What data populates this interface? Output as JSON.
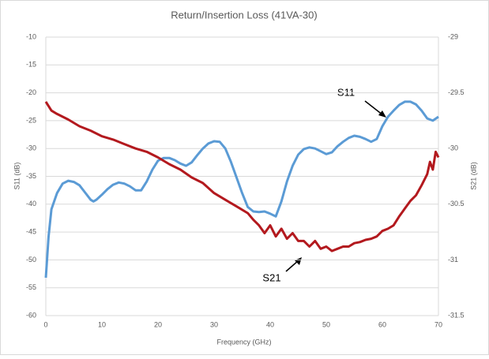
{
  "chart_data": {
    "type": "line",
    "title": "Return/Insertion Loss (41VA-30)",
    "xlabel": "Frequency (GHz)",
    "ylabel": "S11 (dB)",
    "y2label": "S21 (dB)",
    "xlim": [
      0,
      70
    ],
    "xticks": [
      0,
      10,
      20,
      30,
      40,
      50,
      60,
      70
    ],
    "ylim": [
      -60,
      -10
    ],
    "yticks": [
      -10,
      -15,
      -20,
      -25,
      -30,
      -35,
      -40,
      -45,
      -50,
      -55,
      -60
    ],
    "y2lim": [
      -31.5,
      -29
    ],
    "y2ticks": [
      -29,
      -29.5,
      -30,
      -30.5,
      -31,
      -31.5
    ],
    "grid": true,
    "series": [
      {
        "name": "S11",
        "color": "#5b9bd5",
        "x": [
          0,
          0.5,
          1,
          2,
          3,
          4,
          5,
          6,
          7,
          8,
          8.5,
          9,
          10,
          11,
          12,
          13,
          14,
          15,
          16,
          17,
          18,
          19,
          20,
          21,
          22,
          23,
          24,
          25,
          26,
          27,
          28,
          29,
          30,
          31,
          32,
          33,
          34,
          35,
          36,
          37,
          38,
          39,
          40,
          41,
          42,
          43,
          44,
          45,
          46,
          47,
          48,
          49,
          50,
          51,
          52,
          53,
          54,
          55,
          56,
          57,
          58,
          59,
          60,
          61,
          62,
          63,
          64,
          65,
          66,
          67,
          68,
          69,
          70
        ],
        "values": [
          -53.2,
          -45.8,
          -40.9,
          -38,
          -36.3,
          -35.8,
          -36,
          -36.6,
          -37.9,
          -39.2,
          -39.5,
          -39.2,
          -38.3,
          -37.3,
          -36.5,
          -36.1,
          -36.3,
          -36.8,
          -37.5,
          -37.5,
          -35.9,
          -33.8,
          -32.2,
          -31.7,
          -31.7,
          -32.1,
          -32.7,
          -33.1,
          -32.5,
          -31.2,
          -30,
          -29.1,
          -28.7,
          -28.8,
          -30,
          -32.4,
          -35.2,
          -38,
          -40.5,
          -41.3,
          -41.4,
          -41.3,
          -41.7,
          -42.2,
          -39.5,
          -35.9,
          -33.1,
          -31.1,
          -30.1,
          -29.8,
          -30,
          -30.5,
          -31,
          -30.7,
          -29.6,
          -28.8,
          -28.1,
          -27.7,
          -27.9,
          -28.3,
          -28.8,
          -28.3,
          -26,
          -24.3,
          -23.2,
          -22.2,
          -21.6,
          -21.6,
          -22.1,
          -23.2,
          -24.6,
          -25,
          -24.3
        ]
      },
      {
        "name": "S21",
        "color": "#b3191e",
        "axis": "y2",
        "x": [
          0,
          1,
          2,
          4,
          6,
          8,
          10,
          12,
          14,
          16,
          18,
          20,
          22,
          24,
          26,
          28,
          30,
          32,
          34,
          36,
          37,
          38,
          39,
          40,
          41,
          42,
          43,
          44,
          45,
          46,
          47,
          48,
          49,
          50,
          51,
          52,
          53,
          54,
          55,
          56,
          57,
          58,
          59,
          60,
          61,
          62,
          63,
          64,
          65,
          66,
          67,
          68,
          68.5,
          69,
          69.5,
          70
        ],
        "values": [
          -29.58,
          -29.66,
          -29.69,
          -29.74,
          -29.8,
          -29.84,
          -29.89,
          -29.92,
          -29.96,
          -30,
          -30.03,
          -30.08,
          -30.14,
          -30.19,
          -30.26,
          -30.31,
          -30.4,
          -30.46,
          -30.52,
          -30.58,
          -30.64,
          -30.69,
          -30.76,
          -30.69,
          -30.79,
          -30.72,
          -30.81,
          -30.76,
          -30.83,
          -30.83,
          -30.88,
          -30.83,
          -30.9,
          -30.88,
          -30.92,
          -30.9,
          -30.88,
          -30.88,
          -30.85,
          -30.84,
          -30.82,
          -30.81,
          -30.79,
          -30.74,
          -30.72,
          -30.69,
          -30.61,
          -30.54,
          -30.47,
          -30.42,
          -30.33,
          -30.23,
          -30.12,
          -30.19,
          -30.03,
          -30.08
        ]
      }
    ],
    "annotations": [
      "S11",
      "S21"
    ]
  }
}
